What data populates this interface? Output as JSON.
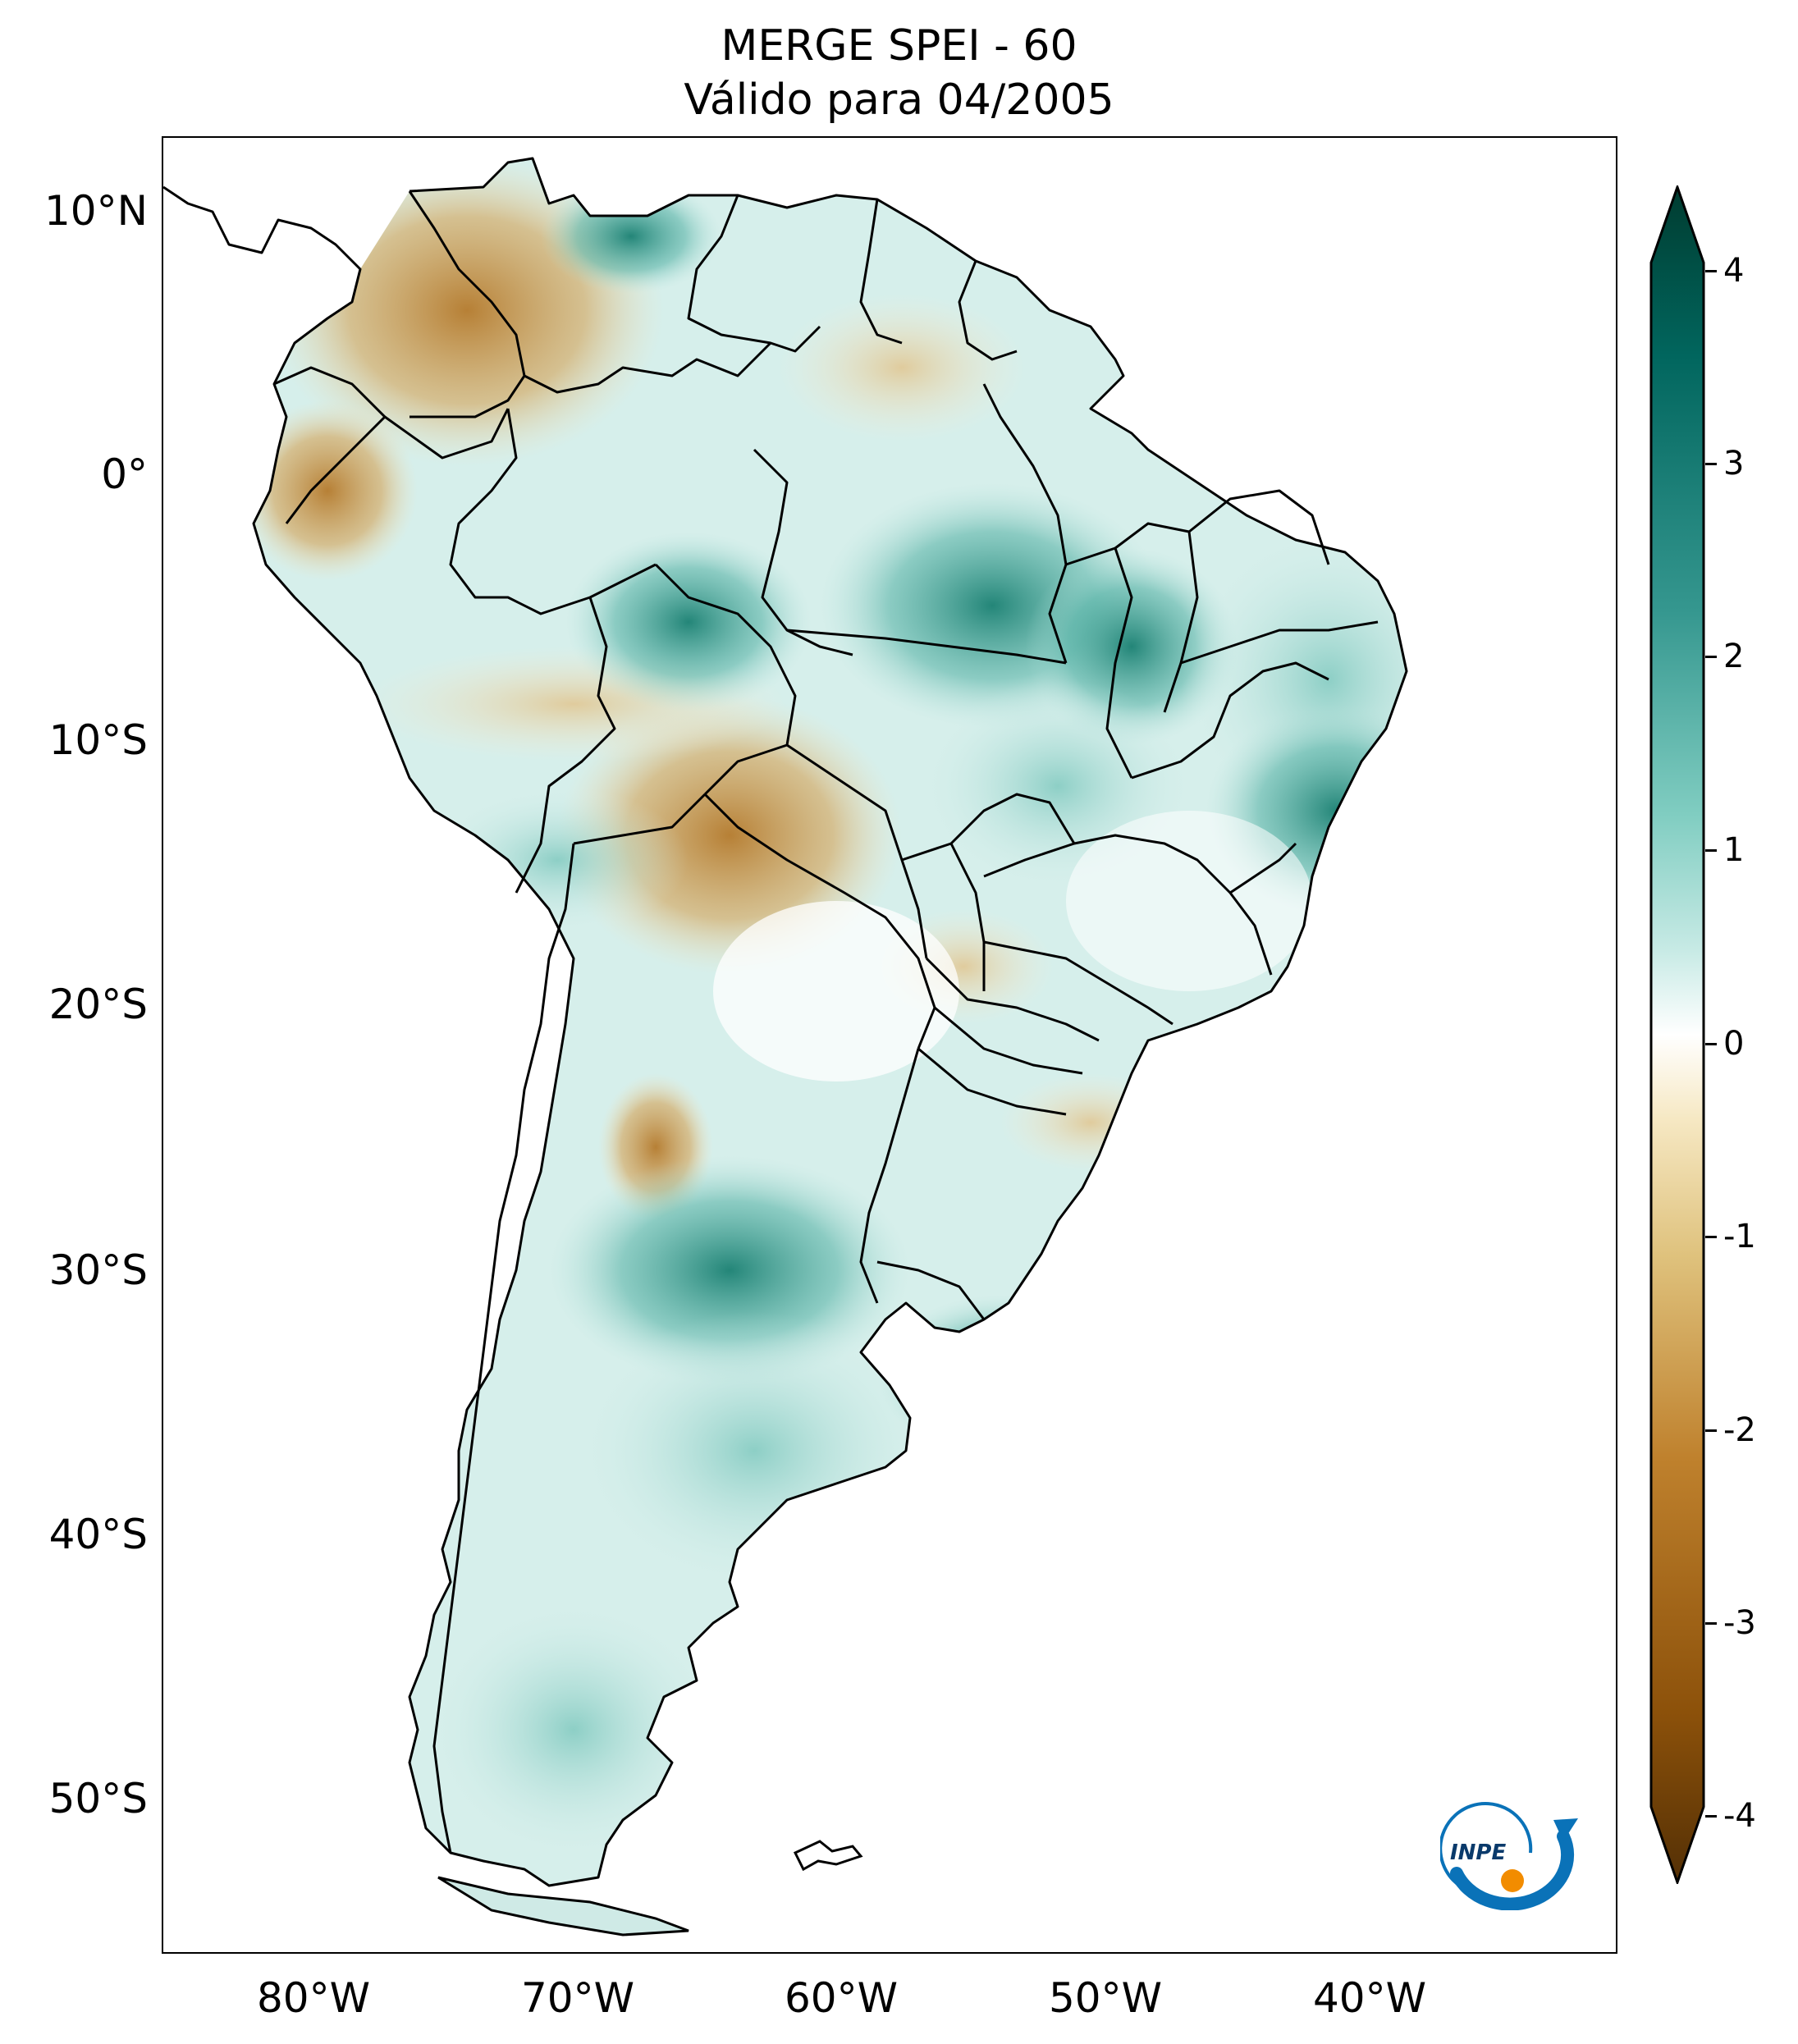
{
  "title": {
    "line1": "MERGE   SPEI - 60",
    "line2": "Válido para 04/2005"
  },
  "map": {
    "variable": "SPEI - 60",
    "product": "MERGE",
    "valid_date": "04/2005",
    "lat_ticks": [
      "10°N",
      "0°",
      "10°S",
      "20°S",
      "30°S",
      "40°S",
      "50°S"
    ],
    "lon_ticks": [
      "80°W",
      "70°W",
      "60°W",
      "50°W",
      "40°W"
    ],
    "lon_range": [
      -85,
      -30
    ],
    "lat_range": [
      -56,
      13
    ],
    "colors": {
      "dry_extreme": "#543005",
      "dry": "#bf812d",
      "neutral": "#ffffff",
      "wet": "#35978f",
      "wet_extreme": "#003c30",
      "border": "#000000"
    }
  },
  "colorbar": {
    "min": -4,
    "max": 4,
    "tick_labels": [
      "4",
      "3",
      "2",
      "1",
      "0",
      "-1",
      "-2",
      "-3",
      "-4"
    ],
    "extend": "both"
  },
  "logo": {
    "text": "INPE",
    "icon": "inpe-logo-icon",
    "colors": {
      "arc": "#0a72b8",
      "dot": "#f28c00"
    }
  }
}
